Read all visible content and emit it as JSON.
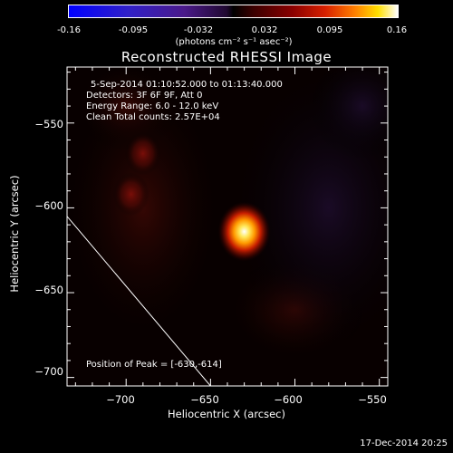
{
  "colorbar": {
    "ticks": [
      "-0.16",
      "-0.095",
      "-0.032",
      "0.032",
      "0.095",
      "0.16"
    ],
    "unit": "(photons cm⁻² s⁻¹ asec⁻²)",
    "range": [
      -0.16,
      0.16
    ]
  },
  "annotations": {
    "time": "5-Sep-2014 01:10:52.000 to 01:13:40.000",
    "detectors": "Detectors: 3F 6F 9F, Att 0",
    "energy": "Energy Range: 6.0 - 12.0 keV",
    "clean": "Clean    Total counts: 2.57E+04",
    "peak": "Position of Peak = [-630,-614]"
  },
  "footer": "17-Dec-2014 20:25",
  "chart_data": {
    "type": "heatmap",
    "title": "Reconstructed RHESSI Image",
    "xlabel": "Heliocentric X (arcsec)",
    "ylabel": "Heliocentric Y (arcsec)",
    "xlim": [
      -735,
      -545
    ],
    "ylim": [
      -705,
      -517
    ],
    "x_ticks": [
      -700,
      -650,
      -600,
      -550
    ],
    "y_ticks": [
      -550,
      -600,
      -650,
      -700
    ],
    "x_tick_labels": [
      "−700",
      "−650",
      "−600",
      "−550"
    ],
    "y_tick_labels": [
      "−550",
      "−600",
      "−650",
      "−700"
    ],
    "colormap": "black-purple-red-yellow-white",
    "sources": [
      {
        "x": -630,
        "y": -614,
        "intensity": 0.16
      },
      {
        "x": -690,
        "y": -568,
        "intensity": 0.04
      },
      {
        "x": -697,
        "y": -592,
        "intensity": 0.035
      }
    ],
    "limb_line": [
      [
        -735,
        -605
      ],
      [
        -650,
        -705
      ]
    ]
  }
}
